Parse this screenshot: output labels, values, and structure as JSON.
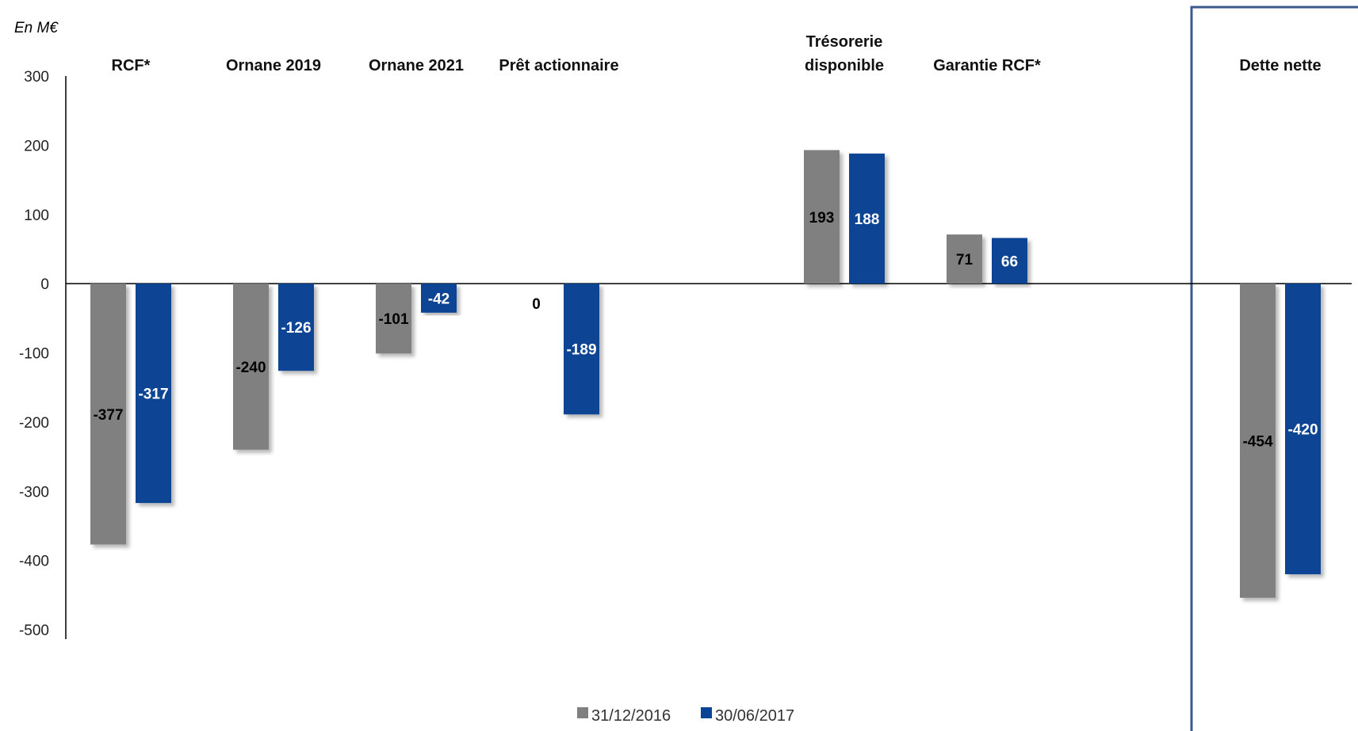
{
  "chart_data": {
    "type": "bar",
    "unit_label": "En M€",
    "categories": [
      [
        "RCF*"
      ],
      [
        "Ornane 2019"
      ],
      [
        "Ornane 2021"
      ],
      [
        "Prêt actionnaire"
      ],
      [
        ""
      ],
      [
        "Trésorerie",
        "disponible"
      ],
      [
        "Garantie RCF*"
      ],
      [
        ""
      ],
      [
        "Dette nette"
      ]
    ],
    "series": [
      {
        "name": "31/12/2016",
        "color": "#808080",
        "label_color": "#000000",
        "values": [
          -377,
          -240,
          -101,
          0,
          null,
          193,
          71,
          null,
          -454
        ]
      },
      {
        "name": "30/06/2017",
        "color": "#0B4494",
        "label_color": "#ffffff",
        "values": [
          -317,
          -126,
          -42,
          -189,
          null,
          188,
          66,
          null,
          -420
        ]
      }
    ],
    "yticks": [
      "300",
      "200",
      "100",
      "0",
      "-100",
      "-200",
      "-300",
      "-400",
      "-500"
    ],
    "ylim": [
      -500,
      300
    ],
    "grid": false,
    "legend_position": "bottom",
    "highlight_box_color": "#3A5A8C"
  }
}
